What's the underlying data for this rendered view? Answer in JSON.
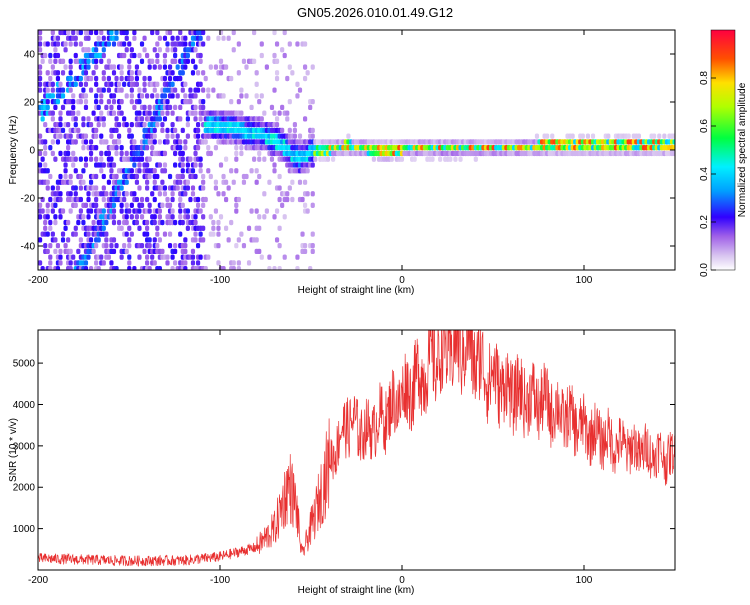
{
  "title": "GN05.2026.010.01.49.G12",
  "chart_data": [
    {
      "type": "heatmap",
      "xlabel": "Height of straight line (km)",
      "ylabel": "Frequency (Hz)",
      "xlim": [
        -200,
        150
      ],
      "ylim": [
        -50,
        50
      ],
      "xticks": [
        -200,
        -100,
        0,
        100
      ],
      "yticks": [
        -40,
        -20,
        0,
        20,
        40
      ],
      "colorbar": {
        "label": "Normalized spectral amplitude",
        "range": [
          0,
          1
        ],
        "ticks": [
          "0.0",
          "0.2",
          "0.4",
          "0.6",
          "0.8"
        ],
        "tick_values": [
          0.0,
          0.2,
          0.4,
          0.6,
          0.8
        ]
      },
      "ridge": {
        "x": [
          -120,
          -105,
          -95,
          -85,
          -75,
          -68,
          -62,
          -57,
          -50,
          -40,
          -30,
          -20,
          -10,
          0,
          20,
          50,
          80,
          110,
          150
        ],
        "y": [
          9,
          10,
          9,
          7,
          5,
          2,
          -2,
          -4,
          -1,
          0,
          1,
          0,
          -1,
          0,
          0,
          0,
          1,
          1,
          1
        ]
      }
    },
    {
      "type": "line",
      "xlabel": "Height of straight line (km)",
      "ylabel": "SNR (10 * v/v)",
      "xlim": [
        -200,
        150
      ],
      "ylim": [
        0,
        5800
      ],
      "xticks": [
        -200,
        -100,
        0,
        100
      ],
      "yticks": [
        1000,
        2000,
        3000,
        4000,
        5000
      ],
      "color": "#e83030",
      "envelope": {
        "x": [
          -200,
          -150,
          -120,
          -100,
          -80,
          -70,
          -62,
          -58,
          -55,
          -48,
          -40,
          -30,
          -20,
          -10,
          0,
          10,
          20,
          30,
          35,
          45,
          60,
          80,
          100,
          120,
          140,
          150
        ],
        "y": [
          280,
          220,
          230,
          320,
          550,
          1000,
          2100,
          1500,
          350,
          1300,
          2600,
          3600,
          3300,
          3700,
          4200,
          4700,
          5200,
          5400,
          5500,
          4800,
          4300,
          4000,
          3400,
          3000,
          2800,
          2700
        ]
      }
    }
  ]
}
